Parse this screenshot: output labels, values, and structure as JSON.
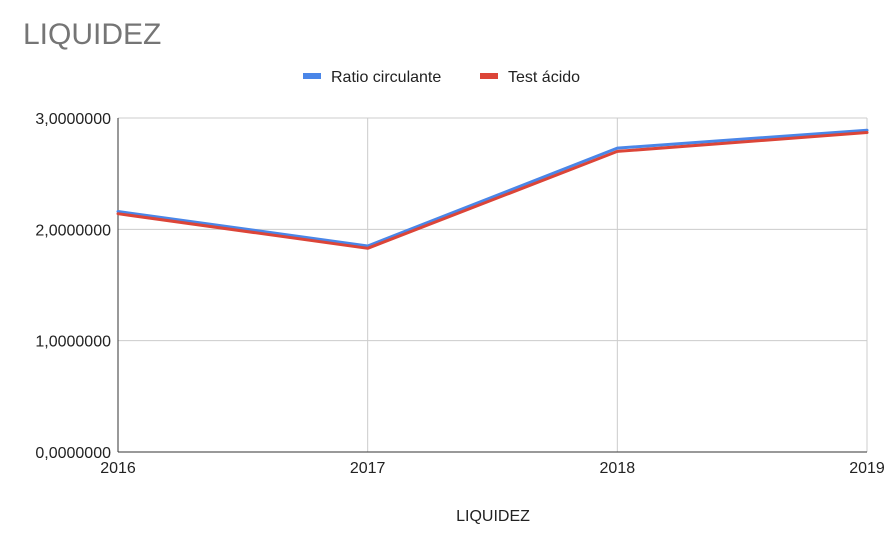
{
  "chart_data": {
    "type": "line",
    "title": "LIQUIDEZ",
    "xlabel": "LIQUIDEZ",
    "ylabel": "",
    "x": [
      "2016",
      "2017",
      "2018",
      "2019"
    ],
    "ylim": [
      0,
      3
    ],
    "yticks": [
      "0,0000000",
      "1,0000000",
      "2,0000000",
      "3,0000000"
    ],
    "grid": true,
    "legend_position": "top",
    "series": [
      {
        "name": "Ratio circulante",
        "color": "#4a86e8",
        "values": [
          2.16,
          1.85,
          2.73,
          2.89
        ]
      },
      {
        "name": "Test ácido",
        "color": "#dc4538",
        "values": [
          2.14,
          1.83,
          2.7,
          2.87
        ]
      }
    ]
  }
}
